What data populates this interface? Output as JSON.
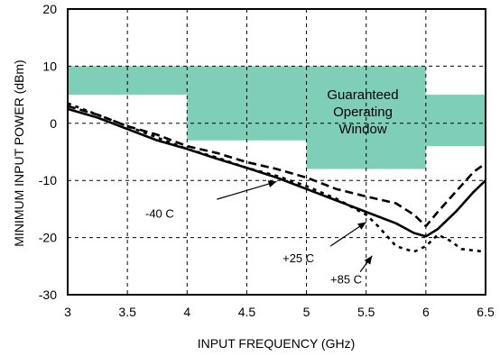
{
  "chart_data": {
    "type": "line",
    "xlabel": "INPUT FREQUENCY (GHz)",
    "ylabel": "MINIMUM INPUT POWER (dBm)",
    "xlim": [
      3,
      6.5
    ],
    "ylim": [
      -30,
      20
    ],
    "grid": true,
    "x_ticks": [
      "3",
      "3.5",
      "4",
      "4.5",
      "5",
      "5.5",
      "6",
      "6.5"
    ],
    "y_ticks": [
      "20",
      "10",
      "0",
      "-10",
      "-20",
      "-30"
    ],
    "window": {
      "label_lines": [
        "Guaranteed",
        "Operating",
        "Window"
      ],
      "color": "#7fcfb8",
      "regions": [
        {
          "x0": 3.0,
          "x1": 4.0,
          "y_low": 5,
          "y_high": 10
        },
        {
          "x0": 4.0,
          "x1": 5.0,
          "y_low": -3,
          "y_high": 10
        },
        {
          "x0": 5.0,
          "x1": 6.0,
          "y_low": -8,
          "y_high": 10
        },
        {
          "x0": 6.0,
          "x1": 6.5,
          "y_low": -4,
          "y_high": 5
        }
      ]
    },
    "series": [
      {
        "name": "-40 C",
        "style": "dashed",
        "points": [
          [
            3,
            3
          ],
          [
            3.25,
            1.5
          ],
          [
            3.5,
            -0.5
          ],
          [
            3.75,
            -2
          ],
          [
            4,
            -4
          ],
          [
            4.25,
            -5.2
          ],
          [
            4.5,
            -6.8
          ],
          [
            4.75,
            -8
          ],
          [
            5,
            -9.5
          ],
          [
            5.25,
            -11.5
          ],
          [
            5.5,
            -12.8
          ],
          [
            5.75,
            -14
          ],
          [
            5.9,
            -16
          ],
          [
            6,
            -18
          ],
          [
            6.1,
            -15.5
          ],
          [
            6.25,
            -12
          ],
          [
            6.4,
            -8.5
          ],
          [
            6.5,
            -7
          ]
        ]
      },
      {
        "name": "+25 C",
        "style": "solid",
        "points": [
          [
            3,
            2.5
          ],
          [
            3.25,
            1
          ],
          [
            3.5,
            -1
          ],
          [
            3.75,
            -3
          ],
          [
            4,
            -4.5
          ],
          [
            4.25,
            -6.2
          ],
          [
            4.5,
            -7.8
          ],
          [
            4.75,
            -9.5
          ],
          [
            5,
            -11.5
          ],
          [
            5.25,
            -13.5
          ],
          [
            5.5,
            -15.5
          ],
          [
            5.75,
            -17.5
          ],
          [
            5.9,
            -19.2
          ],
          [
            6,
            -19.8
          ],
          [
            6.1,
            -18.5
          ],
          [
            6.25,
            -15.5
          ],
          [
            6.4,
            -12
          ],
          [
            6.5,
            -10
          ]
        ]
      },
      {
        "name": "+85 C",
        "style": "dotted",
        "points": [
          [
            3,
            3.5
          ],
          [
            3.25,
            1.5
          ],
          [
            3.5,
            -0.5
          ],
          [
            3.75,
            -2.5
          ],
          [
            4,
            -4.5
          ],
          [
            4.25,
            -6
          ],
          [
            4.5,
            -7.8
          ],
          [
            4.75,
            -9.2
          ],
          [
            5,
            -11
          ],
          [
            5.25,
            -13.2
          ],
          [
            5.5,
            -16
          ],
          [
            5.6,
            -18
          ],
          [
            5.75,
            -21.5
          ],
          [
            5.9,
            -22.5
          ],
          [
            6,
            -21.5
          ],
          [
            6.1,
            -19.5
          ],
          [
            6.2,
            -20.5
          ],
          [
            6.3,
            -22
          ],
          [
            6.5,
            -22.5
          ]
        ]
      }
    ],
    "annotations": [
      {
        "label": "-40 C",
        "text_at": [
          3.65,
          -16.5
        ],
        "arrow_from": [
          4.25,
          -13.3
        ],
        "arrow_to": [
          4.75,
          -10.2
        ]
      },
      {
        "label": "+25 C",
        "text_at": [
          4.8,
          -24.3
        ],
        "arrow_from": [
          5.2,
          -21.5
        ],
        "arrow_to": [
          5.5,
          -17.3
        ]
      },
      {
        "label": "+85 C",
        "text_at": [
          5.2,
          -28
        ],
        "arrow_from": [
          5.45,
          -26
        ],
        "arrow_to": [
          5.55,
          -23.2
        ]
      }
    ]
  }
}
